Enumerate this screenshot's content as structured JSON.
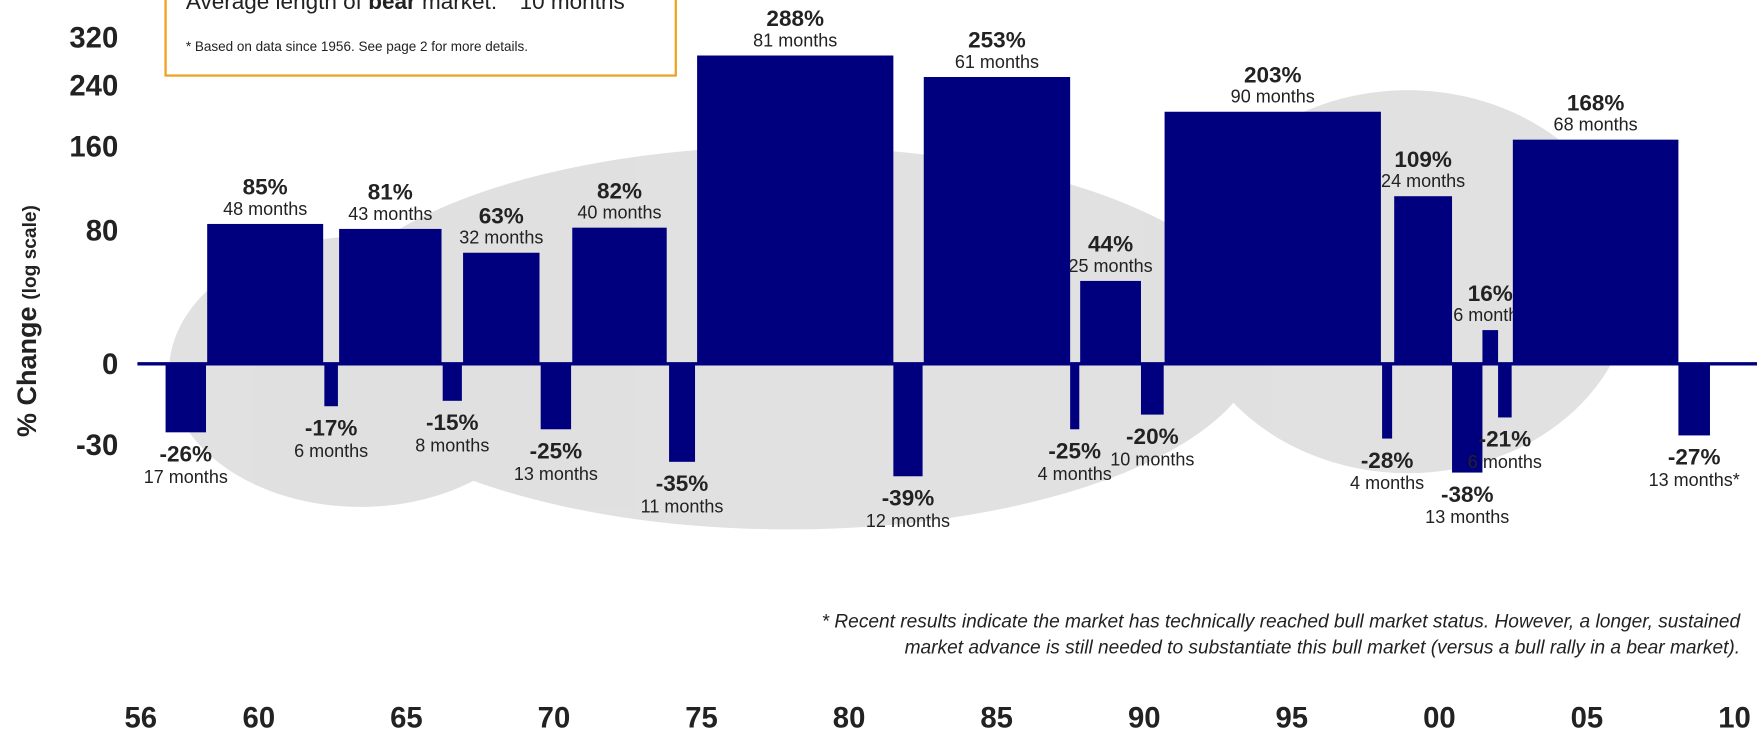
{
  "chart_data": {
    "type": "bull_bear",
    "y_axis_label": "% Change",
    "y_axis_note": "(log scale)",
    "note": {
      "prefix": "Average length of ",
      "bold": "bear",
      "suffix": " market:",
      "value": "10 months",
      "footnote": "* Based on data since 1956. See page 2 for more details."
    },
    "footnote": [
      "* Recent results indicate the market has technically reached bull market status. However, a longer, sustained",
      "market advance is still needed to substantiate this bull market (versus a bull rally in a bear market)."
    ],
    "log_scale": true,
    "color": "#00007f",
    "ylim": [
      -60,
      400
    ],
    "yticks": [
      320,
      240,
      160,
      80,
      0,
      -30
    ],
    "xlim": [
      1956,
      2010
    ],
    "xticks": [
      {
        "value": 1956,
        "label": "56"
      },
      {
        "value": 1960,
        "label": "60"
      },
      {
        "value": 1965,
        "label": "65"
      },
      {
        "value": 1970,
        "label": "70"
      },
      {
        "value": 1975,
        "label": "75"
      },
      {
        "value": 1980,
        "label": "80"
      },
      {
        "value": 1985,
        "label": "85"
      },
      {
        "value": 1990,
        "label": "90"
      },
      {
        "value": 1995,
        "label": "95"
      },
      {
        "value": 2000,
        "label": "00"
      },
      {
        "value": 2005,
        "label": "05"
      },
      {
        "value": 2010,
        "label": "10"
      }
    ],
    "segments": [
      {
        "start": 1956.84,
        "end": 1958.21,
        "value": -26,
        "label": "-26%",
        "months": "17 months"
      },
      {
        "start": 1958.25,
        "end": 1962.18,
        "value": 85,
        "label": "85%",
        "months": "48 months"
      },
      {
        "start": 1962.22,
        "end": 1962.68,
        "value": -17,
        "label": "-17%",
        "months": "6 months"
      },
      {
        "start": 1962.72,
        "end": 1966.19,
        "value": 81,
        "label": "81%",
        "months": "43 months"
      },
      {
        "start": 1966.23,
        "end": 1966.88,
        "value": -15,
        "label": "-15%",
        "months": "8 months"
      },
      {
        "start": 1966.92,
        "end": 1969.51,
        "value": 63,
        "label": "63%",
        "months": "32 months"
      },
      {
        "start": 1969.55,
        "end": 1970.58,
        "value": -25,
        "label": "-25%",
        "months": "13 months"
      },
      {
        "start": 1970.62,
        "end": 1973.82,
        "value": 82,
        "label": "82%",
        "months": "40 months"
      },
      {
        "start": 1973.9,
        "end": 1974.78,
        "value": -35,
        "label": "-35%",
        "months": "11 months"
      },
      {
        "start": 1974.85,
        "end": 1981.5,
        "value": 288,
        "label": "288%",
        "months": "81 months"
      },
      {
        "start": 1981.5,
        "end": 1982.49,
        "value": -39,
        "label": "-39%",
        "months": "12 months"
      },
      {
        "start": 1982.53,
        "end": 1987.49,
        "value": 253,
        "label": "253%",
        "months": "61 months"
      },
      {
        "start": 1987.49,
        "end": 1987.8,
        "value": -25,
        "label": "-25%",
        "months": "4 months"
      },
      {
        "start": 1987.83,
        "end": 1989.89,
        "value": 44,
        "label": "44%",
        "months": "25 months"
      },
      {
        "start": 1989.89,
        "end": 1990.66,
        "value": -20,
        "label": "-20%",
        "months": "10 months"
      },
      {
        "start": 1990.69,
        "end": 1998.02,
        "value": 203,
        "label": "203%",
        "months": "90 months"
      },
      {
        "start": 1998.06,
        "end": 1998.4,
        "value": -28,
        "label": "-28%",
        "months": "4 months"
      },
      {
        "start": 1998.47,
        "end": 2000.43,
        "value": 109,
        "label": "109%",
        "months": "24 months"
      },
      {
        "start": 2000.43,
        "end": 2001.46,
        "value": -38,
        "label": "-38%",
        "months": "13 months"
      },
      {
        "start": 2001.46,
        "end": 2001.99,
        "value": 16,
        "label": "16%",
        "months": "6 months"
      },
      {
        "start": 2001.99,
        "end": 2002.45,
        "value": -21,
        "label": "-21%",
        "months": "6 months"
      },
      {
        "start": 2002.49,
        "end": 2008.1,
        "value": 168,
        "label": "168%",
        "months": "68 months"
      },
      {
        "start": 2008.1,
        "end": 2009.17,
        "value": -27,
        "label": "-27%",
        "months": "13 months*"
      }
    ]
  }
}
